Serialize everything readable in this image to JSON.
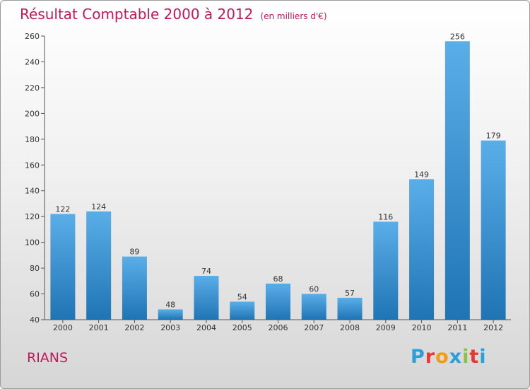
{
  "title": "Résultat Comptable 2000 à 2012",
  "subtitle": "(en milliers d'€)",
  "place": "RIANS",
  "logo": [
    "P",
    "r",
    "o",
    "x",
    "i",
    "t",
    "i"
  ],
  "colors": {
    "title": "#c2185b",
    "bar_top": "#5aaee8",
    "bar_bottom": "#1f74b4",
    "logo": [
      "#2a9fd8",
      "#e53935",
      "#f39c12",
      "#2a9fd8",
      "#8bc34a",
      "#e53935",
      "#2a9fd8"
    ]
  },
  "chart_data": {
    "type": "bar",
    "title": "Résultat Comptable 2000 à 2012",
    "subtitle": "(en milliers d'€)",
    "xlabel": "",
    "ylabel": "",
    "categories": [
      "2000",
      "2001",
      "2002",
      "2003",
      "2004",
      "2005",
      "2006",
      "2007",
      "2008",
      "2009",
      "2010",
      "2011",
      "2012"
    ],
    "values": [
      122,
      124,
      89,
      48,
      74,
      54,
      68,
      60,
      57,
      116,
      149,
      256,
      179
    ],
    "ylim": [
      40,
      260
    ],
    "yticks": [
      40,
      60,
      80,
      100,
      120,
      140,
      160,
      180,
      200,
      220,
      240,
      260
    ],
    "grid": false,
    "legend": false
  }
}
